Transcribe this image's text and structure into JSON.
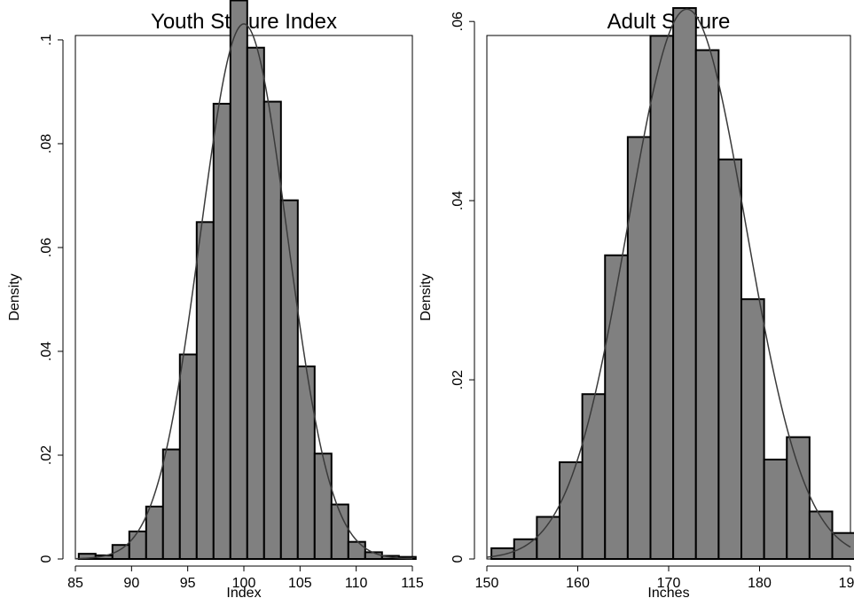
{
  "chart_data": [
    {
      "type": "bar",
      "title": "Youth Stature Index",
      "xlabel": "Index",
      "ylabel": "Density",
      "xlim": [
        85,
        115
      ],
      "ylim": [
        0,
        0.107
      ],
      "xticks": [
        "85",
        "90",
        "95",
        "100",
        "105",
        "110",
        "115"
      ],
      "yticks": [
        "0",
        ".02",
        ".04",
        ".06",
        ".08",
        ".1"
      ],
      "bin_width": 1.5,
      "bin_start": 85.3,
      "values": [
        0.001,
        0.0007,
        0.0027,
        0.0053,
        0.0101,
        0.0211,
        0.0394,
        0.0649,
        0.0877,
        0.1076,
        0.0985,
        0.0881,
        0.0691,
        0.0371,
        0.0203,
        0.0105,
        0.0033,
        0.0013,
        0.0006,
        0.0004
      ],
      "density_curve": {
        "mean": 100.0,
        "sd": 3.87
      },
      "grid": false,
      "legend": "none"
    },
    {
      "type": "bar",
      "title": "Adult Stature",
      "xlabel": "Inches",
      "ylabel": "Density",
      "xlim": [
        150,
        190
      ],
      "ylim": [
        0,
        0.062
      ],
      "xticks": [
        "150",
        "160",
        "170",
        "180",
        "190"
      ],
      "yticks": [
        "0",
        ".02",
        ".04",
        ".06"
      ],
      "bin_width": 2.5,
      "bin_start": 150.5,
      "values": [
        0.0012,
        0.0022,
        0.0047,
        0.0108,
        0.0184,
        0.0339,
        0.0471,
        0.0584,
        0.0615,
        0.0568,
        0.0446,
        0.029,
        0.0111,
        0.0136,
        0.0053,
        0.0029
      ],
      "density_curve": {
        "mean": 172.0,
        "sd": 6.5
      },
      "grid": false,
      "legend": "none"
    }
  ]
}
